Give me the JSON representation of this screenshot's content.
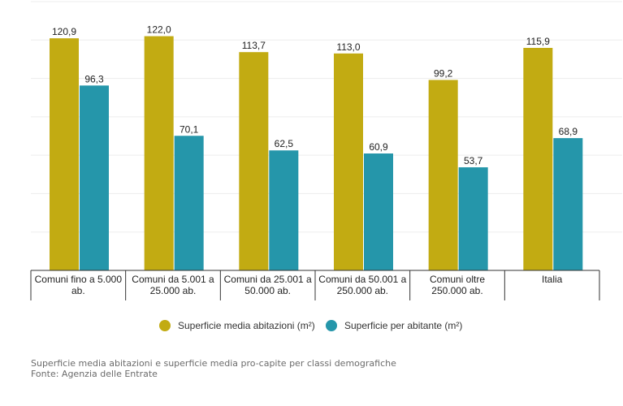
{
  "chart_data": {
    "type": "bar",
    "categories": [
      [
        "Comuni fino a 5.000",
        "ab."
      ],
      [
        "Comuni da 5.001 a",
        "25.000 ab."
      ],
      [
        "Comuni da 25.001 a",
        "50.000 ab."
      ],
      [
        "Comuni da 50.001 a",
        "250.000 ab."
      ],
      [
        "Comuni oltre",
        "250.000 ab."
      ],
      [
        "Italia"
      ]
    ],
    "series": [
      {
        "name": "Superficie media abitazioni (m²)",
        "color": "#c2ab12",
        "values": [
          120.9,
          122.0,
          113.7,
          113.0,
          99.2,
          115.9
        ],
        "labels": [
          "120,9",
          "122,0",
          "113,7",
          "113,0",
          "99,2",
          "115,9"
        ]
      },
      {
        "name": "Superficie per abitante (m²)",
        "color": "#2596aa",
        "values": [
          96.3,
          70.1,
          62.5,
          60.9,
          53.7,
          68.9
        ],
        "labels": [
          "96,3",
          "70,1",
          "62,5",
          "60,9",
          "53,7",
          "68,9"
        ]
      }
    ],
    "ylim": [
      0,
      140
    ],
    "grid": true,
    "legend_position": "bottom"
  },
  "footer": {
    "caption": "Superficie media abitazioni e superficie media pro-capite per classi demografiche",
    "source": "Fonte: Agenzia delle Entrate"
  }
}
